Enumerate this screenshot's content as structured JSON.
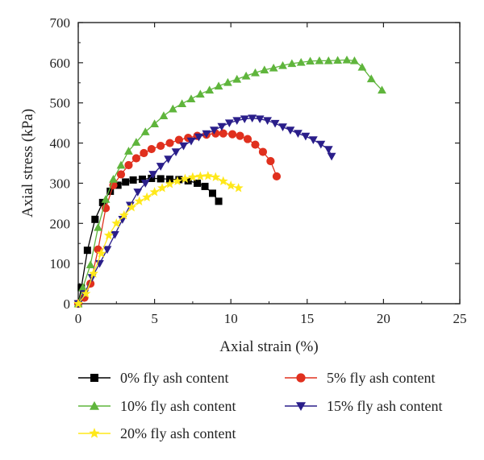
{
  "chart_data": {
    "type": "line",
    "xlabel": "Axial strain (%)",
    "ylabel": "Axial stress (kPa)",
    "xlim": [
      0,
      25
    ],
    "ylim": [
      0,
      700
    ],
    "xticks": [
      0,
      5,
      10,
      15,
      20,
      25
    ],
    "yticks": [
      0,
      100,
      200,
      300,
      400,
      500,
      600,
      700
    ],
    "grid": false,
    "legend_position": "bottom",
    "series": [
      {
        "name": "0% fly ash content",
        "color": "#000000",
        "marker": "square",
        "points": [
          [
            0,
            0
          ],
          [
            0.2,
            40
          ],
          [
            0.6,
            133
          ],
          [
            1.1,
            210
          ],
          [
            1.6,
            252
          ],
          [
            2.1,
            280
          ],
          [
            2.6,
            295
          ],
          [
            3.1,
            303
          ],
          [
            3.6,
            308
          ],
          [
            4.2,
            310
          ],
          [
            4.8,
            312
          ],
          [
            5.4,
            311
          ],
          [
            6.0,
            310
          ],
          [
            6.6,
            309
          ],
          [
            7.2,
            306
          ],
          [
            7.8,
            300
          ],
          [
            8.3,
            292
          ],
          [
            8.8,
            275
          ],
          [
            9.2,
            255
          ]
        ]
      },
      {
        "name": "5% fly ash content",
        "color": "#e0301e",
        "marker": "circle",
        "points": [
          [
            0,
            0
          ],
          [
            0.4,
            15
          ],
          [
            0.8,
            50
          ],
          [
            1.3,
            135
          ],
          [
            1.8,
            238
          ],
          [
            2.3,
            295
          ],
          [
            2.8,
            322
          ],
          [
            3.3,
            345
          ],
          [
            3.8,
            362
          ],
          [
            4.3,
            375
          ],
          [
            4.8,
            385
          ],
          [
            5.4,
            393
          ],
          [
            6.0,
            400
          ],
          [
            6.6,
            408
          ],
          [
            7.2,
            413
          ],
          [
            7.8,
            418
          ],
          [
            8.4,
            421
          ],
          [
            9.0,
            424
          ],
          [
            9.5,
            424
          ],
          [
            10.1,
            422
          ],
          [
            10.6,
            418
          ],
          [
            11.1,
            410
          ],
          [
            11.6,
            396
          ],
          [
            12.1,
            378
          ],
          [
            12.6,
            355
          ],
          [
            13.0,
            317
          ]
        ]
      },
      {
        "name": "10% fly ash content",
        "color": "#5fb53c",
        "marker": "triangle-up",
        "points": [
          [
            0,
            0
          ],
          [
            0.3,
            40
          ],
          [
            0.8,
            97
          ],
          [
            1.3,
            190
          ],
          [
            1.8,
            260
          ],
          [
            2.3,
            310
          ],
          [
            2.8,
            345
          ],
          [
            3.3,
            380
          ],
          [
            3.8,
            402
          ],
          [
            4.4,
            428
          ],
          [
            5.0,
            448
          ],
          [
            5.6,
            468
          ],
          [
            6.2,
            485
          ],
          [
            6.8,
            498
          ],
          [
            7.4,
            510
          ],
          [
            8.0,
            522
          ],
          [
            8.6,
            532
          ],
          [
            9.2,
            542
          ],
          [
            9.8,
            551
          ],
          [
            10.4,
            559
          ],
          [
            11.0,
            567
          ],
          [
            11.6,
            575
          ],
          [
            12.2,
            582
          ],
          [
            12.8,
            587
          ],
          [
            13.4,
            593
          ],
          [
            14.0,
            598
          ],
          [
            14.6,
            601
          ],
          [
            15.2,
            604
          ],
          [
            15.8,
            605
          ],
          [
            16.4,
            605
          ],
          [
            17.0,
            606
          ],
          [
            17.6,
            607
          ],
          [
            18.1,
            605
          ],
          [
            18.6,
            589
          ],
          [
            19.2,
            560
          ],
          [
            19.9,
            532
          ]
        ]
      },
      {
        "name": "15% fly ash content",
        "color": "#2a1e8a",
        "marker": "triangle-down",
        "points": [
          [
            0,
            0
          ],
          [
            0.4,
            25
          ],
          [
            0.9,
            65
          ],
          [
            1.4,
            100
          ],
          [
            1.9,
            135
          ],
          [
            2.4,
            172
          ],
          [
            2.9,
            210
          ],
          [
            3.4,
            245
          ],
          [
            3.9,
            278
          ],
          [
            4.4,
            300
          ],
          [
            4.9,
            322
          ],
          [
            5.4,
            342
          ],
          [
            5.9,
            360
          ],
          [
            6.4,
            378
          ],
          [
            6.9,
            393
          ],
          [
            7.4,
            405
          ],
          [
            7.9,
            415
          ],
          [
            8.4,
            423
          ],
          [
            8.9,
            432
          ],
          [
            9.4,
            441
          ],
          [
            9.9,
            450
          ],
          [
            10.4,
            456
          ],
          [
            10.9,
            460
          ],
          [
            11.4,
            462
          ],
          [
            11.9,
            460
          ],
          [
            12.4,
            456
          ],
          [
            12.9,
            449
          ],
          [
            13.4,
            440
          ],
          [
            13.9,
            432
          ],
          [
            14.4,
            424
          ],
          [
            14.9,
            417
          ],
          [
            15.4,
            408
          ],
          [
            15.9,
            397
          ],
          [
            16.4,
            384
          ],
          [
            16.6,
            367
          ]
        ]
      },
      {
        "name": "20% fly ash content",
        "color": "#ffe81a",
        "marker": "star",
        "points": [
          [
            0,
            0
          ],
          [
            0.5,
            25
          ],
          [
            1.0,
            75
          ],
          [
            1.5,
            125
          ],
          [
            2.0,
            170
          ],
          [
            2.5,
            200
          ],
          [
            3.0,
            220
          ],
          [
            3.5,
            240
          ],
          [
            4.0,
            255
          ],
          [
            4.5,
            265
          ],
          [
            5.0,
            278
          ],
          [
            5.5,
            288
          ],
          [
            6.0,
            298
          ],
          [
            6.5,
            305
          ],
          [
            7.0,
            311
          ],
          [
            7.5,
            315
          ],
          [
            8.0,
            317
          ],
          [
            8.5,
            318
          ],
          [
            9.0,
            315
          ],
          [
            9.5,
            305
          ],
          [
            10.0,
            294
          ],
          [
            10.5,
            288
          ]
        ]
      }
    ]
  }
}
